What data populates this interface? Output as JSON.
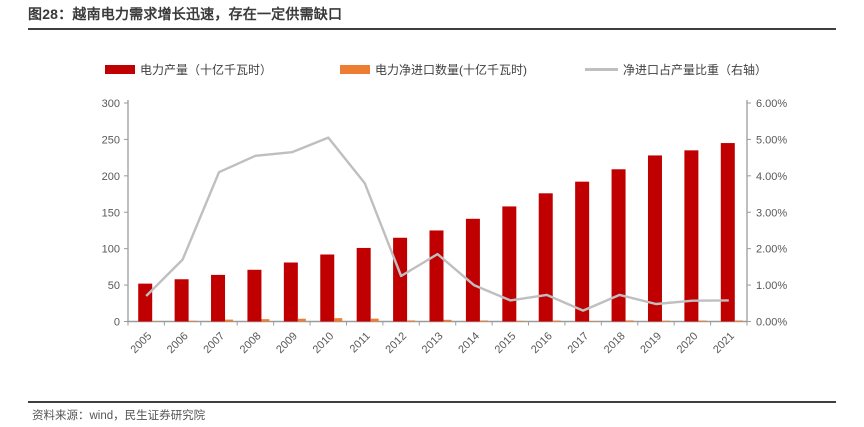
{
  "page": {
    "title": "图28：越南电力需求增长迅速，存在一定供需缺口",
    "source": "资料来源：wind，民生证券研究院"
  },
  "legend": [
    {
      "label": "电力产量（十亿千瓦时）",
      "color": "#c00000",
      "type": "bar"
    },
    {
      "label": "电力净进口数量(十亿千瓦时)",
      "color": "#ed7d31",
      "type": "bar"
    },
    {
      "label": "净进口占产量比重（右轴）",
      "color": "#bfbfbf",
      "type": "line"
    }
  ],
  "chart_data": {
    "type": "bar",
    "subtype": "combo-bar-line",
    "categories": [
      2005,
      2006,
      2007,
      2008,
      2009,
      2010,
      2011,
      2012,
      2013,
      2014,
      2015,
      2016,
      2017,
      2018,
      2019,
      2020,
      2021
    ],
    "series": [
      {
        "name": "电力产量（十亿千瓦时）",
        "type": "bar",
        "axis": "left",
        "color": "#c00000",
        "values": [
          52,
          58,
          64,
          71,
          81,
          92,
          101,
          115,
          125,
          141,
          158,
          176,
          192,
          209,
          228,
          235,
          245
        ]
      },
      {
        "name": "电力净进口数量(十亿千瓦时)",
        "type": "bar",
        "axis": "left",
        "color": "#ed7d31",
        "values": [
          0.4,
          1.0,
          2.6,
          3.2,
          3.8,
          4.6,
          3.9,
          1.5,
          2.3,
          1.4,
          0.9,
          1.3,
          0.6,
          1.5,
          1.1,
          1.3,
          1.4
        ]
      },
      {
        "name": "净进口占产量比重（右轴）",
        "type": "line",
        "axis": "right",
        "color": "#bfbfbf",
        "values": [
          0.7,
          1.7,
          4.1,
          4.55,
          4.65,
          5.05,
          3.8,
          1.25,
          1.85,
          1.0,
          0.58,
          0.73,
          0.3,
          0.73,
          0.48,
          0.57,
          0.58
        ]
      }
    ],
    "left_axis": {
      "min": 0,
      "max": 300,
      "step": 50,
      "ticks": [
        "300",
        "250",
        "200",
        "150",
        "100",
        "50",
        "0"
      ]
    },
    "right_axis": {
      "min": 0,
      "max": 6,
      "step": 1,
      "ticks": [
        "6.00%",
        "5.00%",
        "4.00%",
        "3.00%",
        "2.00%",
        "1.00%",
        "0.00%"
      ],
      "unit": "%"
    },
    "grid": false,
    "legend_position": "top",
    "axis_color": "#9b9b9b",
    "tick_label_color": "#595959"
  }
}
